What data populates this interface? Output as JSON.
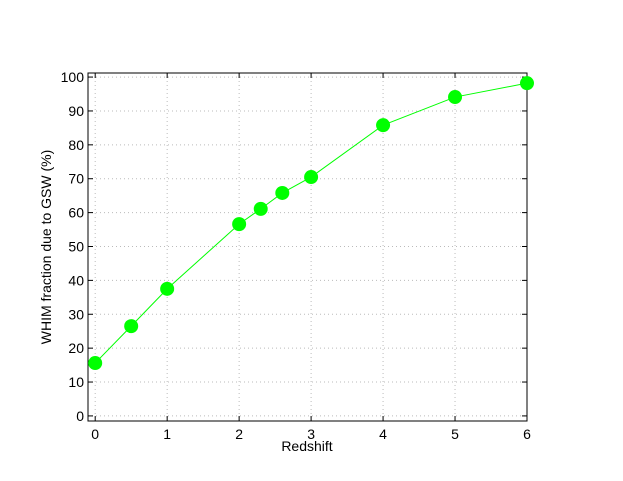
{
  "chart_data": {
    "type": "line",
    "xlabel": "Redshift",
    "ylabel": "WHIM fraction due to GSW (%)",
    "x": [
      0,
      0.5,
      1,
      2,
      2.3,
      2.6,
      3,
      4,
      5,
      6
    ],
    "series": [
      {
        "color": "#00ff00",
        "values": [
          15.6,
          26.5,
          37.5,
          56.6,
          61.1,
          65.8,
          70.5,
          85.8,
          94.1,
          98.2
        ]
      }
    ],
    "xlim": [
      -0.1,
      6
    ],
    "ylim": [
      -1.5,
      101.2
    ],
    "xticks": [
      0,
      1,
      2,
      3,
      4,
      5,
      6
    ],
    "yticks": [
      0,
      10,
      20,
      30,
      40,
      50,
      60,
      70,
      80,
      90,
      100
    ],
    "grid": true
  }
}
